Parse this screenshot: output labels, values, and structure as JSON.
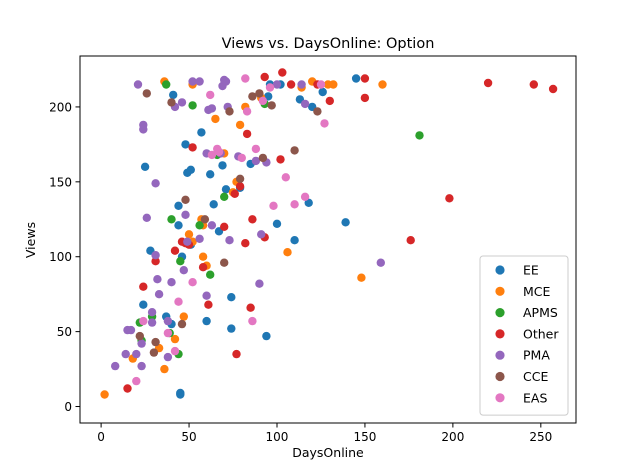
{
  "chart_data": {
    "type": "scatter",
    "title": "Views vs. DaysOnline: Option",
    "xlabel": "DaysOnline",
    "ylabel": "Views",
    "xlim": [
      -12,
      270
    ],
    "ylim": [
      -11,
      234
    ],
    "xticks": [
      0,
      50,
      100,
      150,
      200,
      250
    ],
    "yticks": [
      0,
      50,
      100,
      150,
      200
    ],
    "grid": false,
    "legend_position": "lower-right",
    "series": [
      {
        "name": "EE",
        "color": "#1f77b4",
        "points": [
          [
            45,
            8
          ],
          [
            45,
            9
          ],
          [
            24,
            68
          ],
          [
            25,
            160
          ],
          [
            28,
            104
          ],
          [
            37,
            60
          ],
          [
            40,
            55
          ],
          [
            41,
            208
          ],
          [
            44,
            121
          ],
          [
            44,
            134
          ],
          [
            46,
            100
          ],
          [
            48,
            175
          ],
          [
            49,
            156
          ],
          [
            51,
            158
          ],
          [
            51,
            108
          ],
          [
            57,
            183
          ],
          [
            60,
            57
          ],
          [
            62,
            155
          ],
          [
            64,
            135
          ],
          [
            67,
            117
          ],
          [
            69,
            161
          ],
          [
            71,
            145
          ],
          [
            74,
            52
          ],
          [
            74,
            73
          ],
          [
            79,
            146
          ],
          [
            85,
            162
          ],
          [
            94,
            47
          ],
          [
            96,
            215
          ],
          [
            95,
            207
          ],
          [
            100,
            122
          ],
          [
            102,
            215
          ],
          [
            110,
            111
          ],
          [
            113,
            205
          ],
          [
            118,
            136
          ],
          [
            120,
            200
          ],
          [
            126,
            210
          ],
          [
            139,
            123
          ],
          [
            145,
            219
          ]
        ]
      },
      {
        "name": "MCE",
        "color": "#ff7f0e",
        "points": [
          [
            2,
            8
          ],
          [
            18,
            32
          ],
          [
            33,
            39
          ],
          [
            36,
            25
          ],
          [
            36,
            217
          ],
          [
            42,
            45
          ],
          [
            47,
            60
          ],
          [
            50,
            115
          ],
          [
            52,
            110
          ],
          [
            52,
            215
          ],
          [
            57,
            125
          ],
          [
            58,
            100
          ],
          [
            58,
            121
          ],
          [
            60,
            94
          ],
          [
            65,
            192
          ],
          [
            70,
            169
          ],
          [
            75,
            143
          ],
          [
            77,
            150
          ],
          [
            79,
            188
          ],
          [
            82,
            200
          ],
          [
            91,
            206
          ],
          [
            106,
            103
          ],
          [
            114,
            213
          ],
          [
            120,
            217
          ],
          [
            129,
            215
          ],
          [
            132,
            215
          ],
          [
            148,
            86
          ],
          [
            160,
            215
          ]
        ]
      },
      {
        "name": "APMS",
        "color": "#2ca02c",
        "points": [
          [
            22,
            56
          ],
          [
            23,
            44
          ],
          [
            29,
            60
          ],
          [
            37,
            215
          ],
          [
            39,
            49
          ],
          [
            40,
            125
          ],
          [
            44,
            35
          ],
          [
            45,
            97
          ],
          [
            52,
            201
          ],
          [
            56,
            121
          ],
          [
            62,
            88
          ],
          [
            66,
            168
          ],
          [
            70,
            140
          ],
          [
            93,
            202
          ],
          [
            181,
            181
          ]
        ]
      },
      {
        "name": "Other",
        "color": "#d62728",
        "points": [
          [
            15,
            12
          ],
          [
            24,
            80
          ],
          [
            31,
            97
          ],
          [
            42,
            104
          ],
          [
            46,
            110
          ],
          [
            48,
            109
          ],
          [
            50,
            108
          ],
          [
            52,
            173
          ],
          [
            58,
            93
          ],
          [
            61,
            68
          ],
          [
            70,
            120
          ],
          [
            76,
            142
          ],
          [
            77,
            35
          ],
          [
            79,
            147
          ],
          [
            82,
            109
          ],
          [
            83,
            182
          ],
          [
            85,
            66
          ],
          [
            86,
            125
          ],
          [
            93,
            113
          ],
          [
            93,
            220
          ],
          [
            102,
            165
          ],
          [
            103,
            223
          ],
          [
            108,
            215
          ],
          [
            123,
            215
          ],
          [
            130,
            204
          ],
          [
            150,
            219
          ],
          [
            150,
            206
          ],
          [
            176,
            111
          ],
          [
            198,
            139
          ],
          [
            220,
            216
          ],
          [
            246,
            215
          ],
          [
            257,
            212
          ]
        ]
      },
      {
        "name": "PMA",
        "color": "#9467bd",
        "points": [
          [
            8,
            27
          ],
          [
            14,
            35
          ],
          [
            15,
            51
          ],
          [
            17,
            51
          ],
          [
            20,
            35
          ],
          [
            21,
            215
          ],
          [
            23,
            27
          ],
          [
            23,
            42
          ],
          [
            24,
            188
          ],
          [
            24,
            185
          ],
          [
            26,
            126
          ],
          [
            29,
            56
          ],
          [
            29,
            63
          ],
          [
            31,
            101
          ],
          [
            31,
            149
          ],
          [
            32,
            85
          ],
          [
            33,
            75
          ],
          [
            38,
            33
          ],
          [
            38,
            57
          ],
          [
            40,
            83
          ],
          [
            42,
            200
          ],
          [
            46,
            203
          ],
          [
            47,
            91
          ],
          [
            48,
            128
          ],
          [
            49,
            110
          ],
          [
            52,
            217
          ],
          [
            56,
            217
          ],
          [
            56,
            112
          ],
          [
            60,
            169
          ],
          [
            60,
            74
          ],
          [
            61,
            198
          ],
          [
            63,
            121
          ],
          [
            63,
            199
          ],
          [
            68,
            169
          ],
          [
            69,
            214
          ],
          [
            70,
            218
          ],
          [
            71,
            217
          ],
          [
            72,
            200
          ],
          [
            73,
            111
          ],
          [
            78,
            167
          ],
          [
            88,
            164
          ],
          [
            90,
            82
          ],
          [
            91,
            115
          ],
          [
            94,
            163
          ],
          [
            100,
            215
          ],
          [
            114,
            215
          ],
          [
            116,
            202
          ],
          [
            159,
            96
          ]
        ]
      },
      {
        "name": "CCE",
        "color": "#8c564b",
        "points": [
          [
            22,
            47
          ],
          [
            26,
            209
          ],
          [
            30,
            36
          ],
          [
            31,
            43
          ],
          [
            40,
            203
          ],
          [
            46,
            55
          ],
          [
            48,
            138
          ],
          [
            59,
            125
          ],
          [
            70,
            96
          ],
          [
            73,
            197
          ],
          [
            79,
            152
          ],
          [
            86,
            207
          ],
          [
            90,
            209
          ],
          [
            92,
            166
          ],
          [
            97,
            201
          ],
          [
            110,
            171
          ],
          [
            123,
            197
          ]
        ]
      },
      {
        "name": "EAS",
        "color": "#e377c2",
        "points": [
          [
            20,
            17
          ],
          [
            24,
            57
          ],
          [
            38,
            49
          ],
          [
            42,
            37
          ],
          [
            44,
            70
          ],
          [
            52,
            83
          ],
          [
            62,
            208
          ],
          [
            63,
            168
          ],
          [
            66,
            172
          ],
          [
            67,
            170
          ],
          [
            80,
            166
          ],
          [
            82,
            219
          ],
          [
            83,
            197
          ],
          [
            86,
            57
          ],
          [
            88,
            172
          ],
          [
            92,
            204
          ],
          [
            96,
            213
          ],
          [
            98,
            134
          ],
          [
            105,
            153
          ],
          [
            110,
            135
          ],
          [
            116,
            140
          ],
          [
            125,
            215
          ],
          [
            127,
            189
          ]
        ]
      }
    ]
  }
}
